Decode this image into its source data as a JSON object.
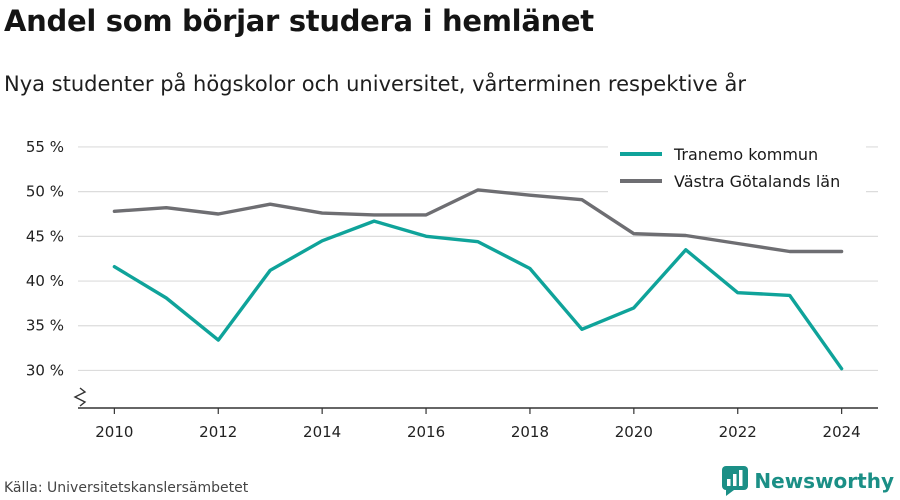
{
  "title": "Andel som börjar studera i hemlänet",
  "subtitle": "Nya studenter på högskolor och universitet, vårterminen respektive år",
  "source": "Källa: Universitetskanslersämbetet",
  "brand": {
    "name": "Newsworthy",
    "logo_icon": "newsworthy-logo-icon",
    "color": "#1b8f86"
  },
  "chart_data": {
    "type": "line",
    "title": "Andel som börjar studera i hemlänet",
    "subtitle": "Nya studenter på högskolor och universitet, vårterminen respektive år",
    "xlabel": "",
    "ylabel": "",
    "x": [
      2010,
      2011,
      2012,
      2013,
      2014,
      2015,
      2016,
      2017,
      2018,
      2019,
      2020,
      2021,
      2022,
      2023,
      2024
    ],
    "xticks": [
      2010,
      2012,
      2014,
      2016,
      2018,
      2020,
      2022,
      2024
    ],
    "xtick_labels": [
      "2010",
      "2012",
      "2014",
      "2016",
      "2018",
      "2020",
      "2022",
      "2024"
    ],
    "xlim": [
      2009.3,
      2024.7
    ],
    "yticks": [
      30,
      35,
      40,
      45,
      50,
      55
    ],
    "ytick_labels": [
      "30 %",
      "35 %",
      "40 %",
      "45 %",
      "50 %",
      "55 %"
    ],
    "ylim": [
      25.8,
      56
    ],
    "axis_break": true,
    "grid": true,
    "legend_position": "top-right",
    "series": [
      {
        "name": "Tranemo kommun",
        "color": "#0fa39a",
        "values": [
          41.6,
          38.1,
          33.4,
          41.2,
          44.5,
          46.7,
          45.0,
          44.4,
          41.4,
          34.6,
          37.0,
          43.5,
          38.7,
          38.4,
          30.2
        ]
      },
      {
        "name": "Västra Götalands län",
        "color": "#6e6e72",
        "values": [
          47.8,
          48.2,
          47.5,
          48.6,
          47.6,
          47.4,
          47.4,
          50.2,
          49.6,
          49.1,
          45.3,
          45.1,
          44.2,
          43.3,
          43.3
        ]
      }
    ]
  }
}
